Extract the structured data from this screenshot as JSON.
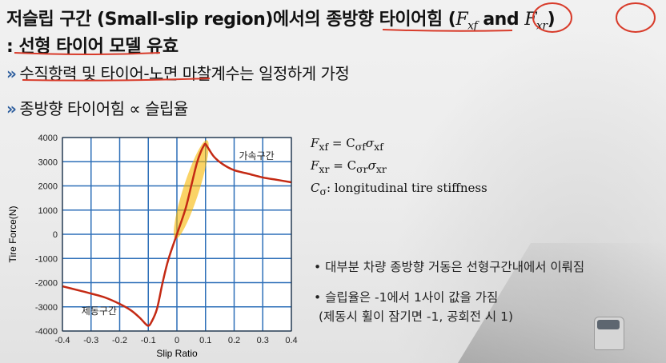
{
  "slide": {
    "title_prefix": "저슬립 구간 (Small-slip region)에서의 종방향 타이어힘 (",
    "f_symbol": "F",
    "fxf_sub": "xf",
    "and_word": "and",
    "fxr_sub": "xr",
    "title_suffix": ")",
    "subtitle": ": 선형 타이어 모델 유효",
    "bullet_mark": "»",
    "bullet1": "수직항력 및 타이어-노면 마찰계수는 일정하게 가정",
    "bullet2": "종방향 타이어힘 ∝ 슬립율"
  },
  "equations": {
    "eq1_lhs": "F",
    "eq1_lhs_sub": "xf",
    "eq1_rhs": "= C",
    "eq1_rhs_sub": "σf",
    "eq1_sigma": "σ",
    "eq1_sigma_sub": "xf",
    "eq2_lhs": "F",
    "eq2_lhs_sub": "xr",
    "eq2_rhs": "= C",
    "eq2_rhs_sub": "σr",
    "eq2_sigma": "σ",
    "eq2_sigma_sub": "xr",
    "eq3_c": "C",
    "eq3_sub": "σ",
    "eq3_text": ": longitudinal tire stiffness"
  },
  "notes": {
    "bullet_dot": "•",
    "note1": "대부분 차량 종방향 거동은 선형구간내에서 이뤄짐",
    "note2": "슬립율은 -1에서 1사이 값을 가짐",
    "note2_sub": "(제동시 휠이 잠기면 -1, 공회전 시 1)"
  },
  "chart_data": {
    "type": "line",
    "xlabel": "Slip Ratio",
    "ylabel": "Tire Force(N)",
    "xlim": [
      -0.4,
      0.4
    ],
    "ylim": [
      -4000,
      4000
    ],
    "x_ticks": [
      "-0.4",
      "-0.3",
      "-0.2",
      "-0.1",
      "0",
      "0.1",
      "0.2",
      "0.3",
      "0.4"
    ],
    "y_ticks": [
      "4000",
      "3000",
      "2000",
      "1000",
      "0",
      "-1000",
      "-2000",
      "-3000",
      "-4000"
    ],
    "grid": true,
    "series": [
      {
        "color": "#c42a14",
        "x": [
          -0.4,
          -0.35,
          -0.3,
          -0.25,
          -0.2,
          -0.16,
          -0.13,
          -0.11,
          -0.1,
          -0.09,
          -0.07,
          -0.05,
          -0.03,
          0,
          0.03,
          0.05,
          0.07,
          0.085,
          0.095,
          0.1,
          0.11,
          0.13,
          0.16,
          0.2,
          0.25,
          0.3,
          0.35,
          0.4
        ],
        "y": [
          -2150,
          -2300,
          -2450,
          -2620,
          -2880,
          -3150,
          -3450,
          -3700,
          -3780,
          -3650,
          -3100,
          -2000,
          -1050,
          0,
          1050,
          2000,
          2950,
          3450,
          3680,
          3730,
          3550,
          3200,
          2900,
          2650,
          2500,
          2350,
          2250,
          2150
        ]
      }
    ],
    "highlight": {
      "color": "#f7b500",
      "x_from": 0.0,
      "x_to": 0.1,
      "note": "linear region"
    },
    "annotations": [
      {
        "text": "가속구간",
        "x": 0.2,
        "y": 3100
      },
      {
        "text": "제동구간",
        "x": -0.3,
        "y": -3300
      }
    ],
    "handwritten_marks": {
      "color": "#d83b2a"
    }
  }
}
